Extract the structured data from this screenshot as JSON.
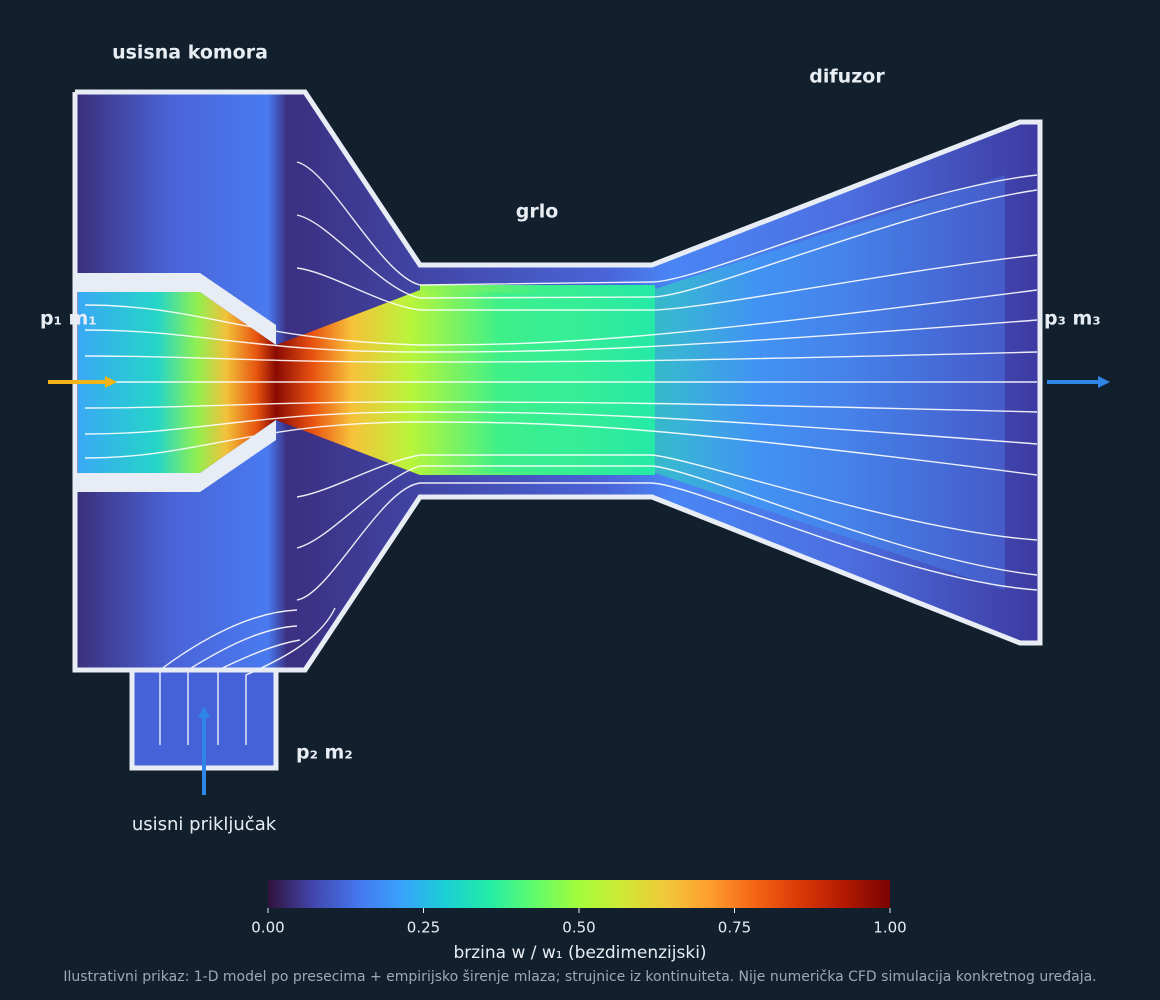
{
  "labels": {
    "suction_chamber": "usisna komora",
    "diffuser": "difuzor",
    "throat": "grlo",
    "suction_port": "usisni priključak"
  },
  "streams": {
    "primary": "p₁  m₁",
    "secondary": "p₂  m₂",
    "outlet": "p₃  m₃"
  },
  "colorbar": {
    "label": "brzina w / w₁ (bezdimenzijski)",
    "lim": [
      0,
      1
    ],
    "ticks": [
      {
        "value": 0,
        "label": "0.00"
      },
      {
        "value": 0.25,
        "label": "0.25"
      },
      {
        "value": 0.5,
        "label": "0.50"
      },
      {
        "value": 0.75,
        "label": "0.75"
      },
      {
        "value": 1,
        "label": "1.00"
      }
    ],
    "colors": [
      "#30123b",
      "#4145ab",
      "#4675ed",
      "#39a2fc",
      "#1bcfd4",
      "#24eca6",
      "#61fc6c",
      "#a4fc3b",
      "#d1e834",
      "#f3c63a",
      "#fe9b2d",
      "#f36315",
      "#d93806",
      "#b11901",
      "#7a0402"
    ]
  },
  "footnote": "Ilustrativni prikaz: 1-D model po presecima + empirijsko širenje mlaza; strujnice iz kontinuiteta. Nije numerička CFD simulacija konkretnog uređaja."
}
